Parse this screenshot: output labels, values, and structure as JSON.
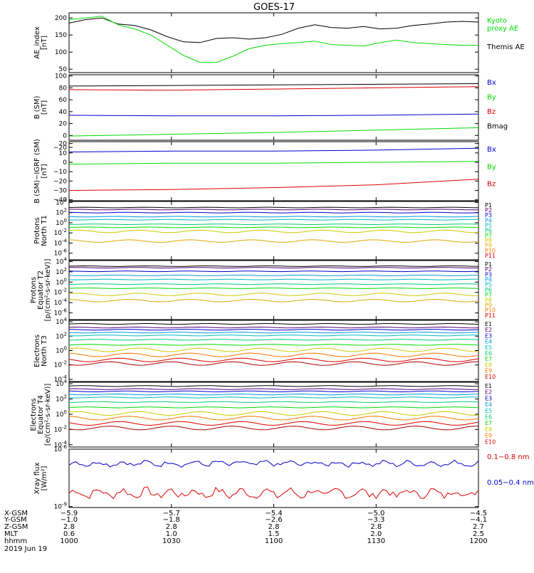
{
  "page_title": "GOES-17",
  "colors": {
    "black": "#000000",
    "blue": "#0000cc",
    "green": "#00dd00",
    "red": "#dd0000",
    "P": [
      "#000000",
      "#550077",
      "#0000cc",
      "#0099dd",
      "#00bbbb",
      "#00cc77",
      "#00dd00",
      "#cccc00",
      "#ddaa00",
      "#ff7700",
      "#dd0000"
    ],
    "E": [
      "#000000",
      "#550077",
      "#0000cc",
      "#0099dd",
      "#00bbbb",
      "#00cc77",
      "#00dd00",
      "#cccc00",
      "#ff7700",
      "#dd0000",
      "#aa0000"
    ]
  },
  "chart_data": [
    {
      "id": "ae",
      "type": "line",
      "ylabel": "AE_index\n[nT]",
      "ylim": [
        40,
        215
      ],
      "ticks": [
        {
          "v": 200,
          "label": "200"
        },
        {
          "v": 150,
          "label": "150"
        },
        {
          "v": 100,
          "label": "100"
        },
        {
          "v": 50,
          "label": "50"
        }
      ],
      "x": [
        0,
        0.04,
        0.08,
        0.12,
        0.16,
        0.2,
        0.24,
        0.28,
        0.32,
        0.36,
        0.4,
        0.44,
        0.48,
        0.52,
        0.56,
        0.6,
        0.64,
        0.68,
        0.72,
        0.76,
        0.8,
        0.84,
        0.88,
        0.92,
        0.96,
        1.0
      ],
      "series": [
        {
          "name": "Themis AE",
          "color": "black",
          "values": [
            185,
            195,
            200,
            182,
            178,
            165,
            145,
            130,
            128,
            140,
            142,
            138,
            142,
            152,
            170,
            180,
            172,
            170,
            175,
            168,
            170,
            178,
            182,
            188,
            190,
            188
          ]
        },
        {
          "name": "Kyoto\nproxy AE",
          "color": "green",
          "values": [
            195,
            200,
            205,
            180,
            168,
            150,
            120,
            90,
            70,
            70,
            88,
            110,
            120,
            125,
            128,
            132,
            122,
            120,
            118,
            128,
            135,
            128,
            125,
            122,
            120,
            120
          ]
        }
      ],
      "legend": [
        {
          "label": "Kyoto\nproxy AE",
          "color": "green",
          "pos": "upper"
        },
        {
          "label": "Themis AE",
          "color": "black",
          "pos": "lower"
        }
      ]
    },
    {
      "id": "bsm",
      "type": "line",
      "ylabel": "B (SM)\n[nT]",
      "ylim": [
        -8,
        102
      ],
      "ticks": [
        {
          "v": 100,
          "label": "100"
        },
        {
          "v": 80,
          "label": "80"
        },
        {
          "v": 60,
          "label": "60"
        },
        {
          "v": 40,
          "label": "40"
        },
        {
          "v": 20,
          "label": "20"
        },
        {
          "v": 0,
          "label": "0"
        },
        {
          "v": -20,
          "label": "−20"
        }
      ],
      "x": [
        0,
        0.25,
        0.5,
        0.75,
        1.0
      ],
      "series": [
        {
          "name": "Bmag",
          "color": "black",
          "values": [
            83,
            84,
            85,
            86,
            87
          ]
        },
        {
          "name": "Bz",
          "color": "red",
          "values": [
            77,
            76,
            78,
            80,
            82
          ]
        },
        {
          "name": "Bx",
          "color": "blue",
          "values": [
            34,
            33,
            33,
            34,
            36
          ]
        },
        {
          "name": "By",
          "color": "green",
          "values": [
            -1,
            2,
            5,
            9,
            13
          ]
        }
      ],
      "legend": [
        {
          "label": "Bx",
          "color": "blue"
        },
        {
          "label": "By",
          "color": "green"
        },
        {
          "label": "Bz",
          "color": "red"
        },
        {
          "label": "Bmag",
          "color": "black"
        }
      ]
    },
    {
      "id": "bigrf",
      "type": "line",
      "ylabel": "B (SM)−IGRF (SM)\n[nT]",
      "ylim": [
        -41,
        22
      ],
      "ticks": [
        {
          "v": 20,
          "label": "20"
        },
        {
          "v": 10,
          "label": "10"
        },
        {
          "v": 0,
          "label": "0"
        },
        {
          "v": -10,
          "label": "−10"
        },
        {
          "v": -20,
          "label": "−20"
        },
        {
          "v": -30,
          "label": "−30"
        },
        {
          "v": -40,
          "label": "−40"
        }
      ],
      "x": [
        0,
        0.25,
        0.5,
        0.75,
        1.0
      ],
      "series": [
        {
          "name": "Bx",
          "color": "blue",
          "values": [
            11,
            12,
            12,
            13,
            15
          ]
        },
        {
          "name": "By",
          "color": "green",
          "values": [
            -2,
            -1,
            -1,
            0,
            1
          ]
        },
        {
          "name": "Bz",
          "color": "red",
          "values": [
            -30,
            -29,
            -27,
            -24,
            -18
          ]
        }
      ],
      "legend": [
        {
          "label": "Bx",
          "color": "blue"
        },
        {
          "label": "By",
          "color": "green"
        },
        {
          "label": "Bz",
          "color": "red"
        }
      ]
    },
    {
      "id": "protons_t1",
      "type": "line",
      "log": true,
      "ylabel": "Protons\nNorth T1",
      "ylim": [
        -7.3,
        4.2
      ],
      "ticks": [
        {
          "v": 4,
          "label": "10^4"
        },
        {
          "v": 2,
          "label": "10^2"
        },
        {
          "v": 0,
          "label": "10^0"
        },
        {
          "v": -2,
          "label": "10^-2"
        },
        {
          "v": -4,
          "label": "10^-4"
        },
        {
          "v": -6,
          "label": "10^-6"
        }
      ],
      "levels": [
        3.0,
        2.6,
        2.0,
        1.2,
        0.6,
        -0.3,
        -0.9,
        -1.7,
        -3.6,
        null,
        null
      ],
      "legend_prefix": "P",
      "legend_count": 11
    },
    {
      "id": "protons_t2",
      "type": "line",
      "log": true,
      "ylabel": "Protons\nEquator T2\n[p/(cm²-s-sr-keV)]",
      "ylim": [
        -7.3,
        4.2
      ],
      "ticks": [
        {
          "v": 4,
          "label": "10^4"
        },
        {
          "v": 2,
          "label": "10^2"
        },
        {
          "v": 0,
          "label": "10^0"
        },
        {
          "v": -2,
          "label": "10^-2"
        },
        {
          "v": -4,
          "label": "10^-4"
        },
        {
          "v": -6,
          "label": "10^-6"
        }
      ],
      "levels": [
        3.1,
        2.8,
        2.1,
        1.3,
        0.5,
        -0.4,
        -1.2,
        -2.4,
        -3.6,
        null,
        null
      ],
      "legend_prefix": "P",
      "legend_count": 11
    },
    {
      "id": "electrons_t3",
      "type": "line",
      "log": true,
      "ylabel": "Electrons\nNorth T3",
      "ylim": [
        -4.3,
        4.2
      ],
      "ticks": [
        {
          "v": 4,
          "label": "10^4"
        },
        {
          "v": 2,
          "label": "10^2"
        },
        {
          "v": 0,
          "label": "10^0"
        },
        {
          "v": -2,
          "label": "10^-2"
        },
        {
          "v": -4,
          "label": "10^-4"
        }
      ],
      "levels": [
        3.7,
        3.2,
        2.9,
        2.5,
        2.1,
        1.5,
        0.8,
        0.1,
        -0.6,
        -1.3,
        -1.8
      ],
      "legend_prefix": "E",
      "legend_count": 10
    },
    {
      "id": "electrons_t4",
      "type": "line",
      "log": true,
      "ylabel": "Electrons\nEquator T4\n[e/(cm²-s-sr-keV)]",
      "ylim": [
        -4.3,
        4.2
      ],
      "ticks": [
        {
          "v": 4,
          "label": "10^4"
        },
        {
          "v": 2,
          "label": "10^2"
        },
        {
          "v": 0,
          "label": "10^0"
        },
        {
          "v": -2,
          "label": "10^-2"
        },
        {
          "v": -4,
          "label": "10^-4"
        }
      ],
      "levels": [
        3.7,
        3.3,
        3.0,
        2.6,
        2.2,
        1.6,
        0.9,
        0.1,
        -0.5,
        -1.2,
        -1.8
      ],
      "legend_prefix": "E",
      "legend_count": 10
    },
    {
      "id": "xray",
      "type": "line",
      "log": true,
      "ylabel": "Xray flux\n[W/m²]",
      "ylim": [
        -9.05,
        -6.0
      ],
      "ticks": [
        {
          "v": -6,
          "label": "10^-6"
        },
        {
          "v": -9,
          "label": "10^-9"
        }
      ],
      "series": [
        {
          "name": "0.1−0.8 nm",
          "color": "red",
          "mean": -8.3,
          "amp": 0.35
        },
        {
          "name": "0.05−0.4 nm",
          "color": "blue",
          "mean": -6.75,
          "amp": 0.2
        }
      ],
      "legend": [
        {
          "label": "0.1−0.8 nm",
          "color": "red"
        },
        {
          "label": "0.05−0.4 nm",
          "color": "blue"
        }
      ]
    }
  ],
  "x_axis": {
    "row_labels": [
      "X-GSM",
      "Y-GSM",
      "Z-GSM",
      "MLT",
      "hhmm"
    ],
    "date": "2019 Jun 19",
    "ticks": [
      {
        "t": 0.0,
        "values": [
          "−5.9",
          "−1.0",
          "2.8",
          "0.6",
          "1000"
        ]
      },
      {
        "t": 0.25,
        "values": [
          "−5.7",
          "−1.8",
          "2.8",
          "1.0",
          "1030"
        ]
      },
      {
        "t": 0.5,
        "values": [
          "−5.4",
          "−2.6",
          "2.8",
          "1.5",
          "1100"
        ]
      },
      {
        "t": 0.75,
        "values": [
          "−5.0",
          "−3.3",
          "2.8",
          "2.0",
          "1130"
        ]
      },
      {
        "t": 1.0,
        "values": [
          "−4.5",
          "−4.1",
          "2.7",
          "2.5",
          "1200"
        ]
      }
    ]
  }
}
